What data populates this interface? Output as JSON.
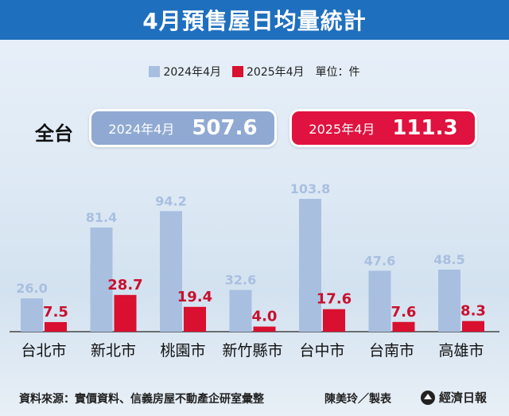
{
  "title": "4月預售屋日均量統計",
  "legend": {
    "series_2024": "2024年4月",
    "series_2025": "2025年4月",
    "unit": "單位：件"
  },
  "total": {
    "label": "全台",
    "y2024_label": "2024年4月",
    "y2024_value": "507.6",
    "y2025_label": "2025年4月",
    "y2025_value": "111.3"
  },
  "colors": {
    "title_bg": "#1f6fbf",
    "series_2024": "#a8bfe0",
    "series_2025": "#d9102f",
    "label_2024": "#a9bfe0",
    "label_2025": "#c8102e"
  },
  "chart_data": {
    "type": "bar",
    "categories": [
      "台北市",
      "新北市",
      "桃園市",
      "新竹縣市",
      "台中市",
      "台南市",
      "高雄市"
    ],
    "series": [
      {
        "name": "2024年4月",
        "values": [
          26.0,
          81.4,
          94.2,
          32.6,
          103.8,
          47.6,
          48.5
        ]
      },
      {
        "name": "2025年4月",
        "values": [
          7.5,
          28.7,
          19.4,
          4.0,
          17.6,
          7.6,
          8.3
        ]
      }
    ],
    "value_labels_2024": [
      "26.0",
      "81.4",
      "94.2",
      "32.6",
      "103.8",
      "47.6",
      "48.5"
    ],
    "value_labels_2025": [
      "7.5",
      "28.7",
      "19.4",
      "4.0",
      "17.6",
      "7.6",
      "8.3"
    ],
    "ylim": [
      0,
      110
    ],
    "grid": false
  },
  "footer": {
    "source": "資料來源：實價資料、信義房屋不動產企研室彙整",
    "author": "陳美玲／製表",
    "brand": "經濟日報"
  }
}
